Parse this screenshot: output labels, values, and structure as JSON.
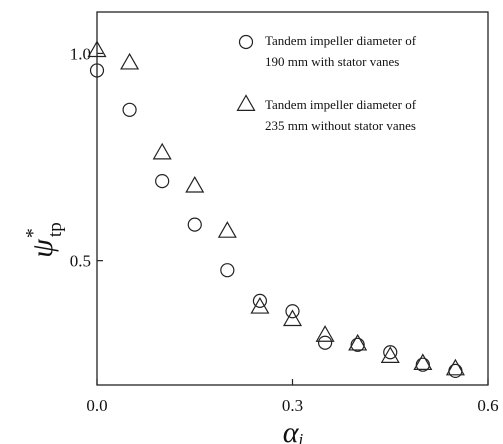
{
  "chart_data": {
    "type": "scatter",
    "xlim": [
      0.0,
      0.6
    ],
    "ylim": [
      0.2,
      1.1
    ],
    "x_ticks": [
      {
        "value": 0.0,
        "label": "0.0"
      },
      {
        "value": 0.3,
        "label": "0.3"
      },
      {
        "value": 0.6,
        "label": "0.6"
      }
    ],
    "y_ticks": [
      {
        "value": 0.5,
        "label": "0.5"
      },
      {
        "value": 1.0,
        "label": "1.0"
      }
    ],
    "xlabel": {
      "main": "α",
      "sub": "i"
    },
    "ylabel": {
      "main": "ψ",
      "sup": "*",
      "sub": "tp"
    },
    "grid": false,
    "legend_position": "top-right",
    "series": [
      {
        "name_lines": [
          "Tandem impeller diameter of",
          "190 mm with stator vanes"
        ],
        "marker": "circle",
        "points": [
          [
            0.0,
            0.959
          ],
          [
            0.05,
            0.864
          ],
          [
            0.1,
            0.692
          ],
          [
            0.15,
            0.587
          ],
          [
            0.2,
            0.477
          ],
          [
            0.25,
            0.403
          ],
          [
            0.3,
            0.378
          ],
          [
            0.35,
            0.302
          ],
          [
            0.4,
            0.297
          ],
          [
            0.45,
            0.279
          ],
          [
            0.5,
            0.249
          ],
          [
            0.55,
            0.234
          ]
        ]
      },
      {
        "name_lines": [
          "Tandem impeller diameter of",
          "235 mm without stator vanes"
        ],
        "marker": "triangle",
        "points": [
          [
            0.0,
            1.008
          ],
          [
            0.05,
            0.978
          ],
          [
            0.1,
            0.761
          ],
          [
            0.15,
            0.681
          ],
          [
            0.2,
            0.572
          ],
          [
            0.25,
            0.389
          ],
          [
            0.3,
            0.359
          ],
          [
            0.35,
            0.321
          ],
          [
            0.4,
            0.3
          ],
          [
            0.45,
            0.27
          ],
          [
            0.5,
            0.253
          ],
          [
            0.55,
            0.24
          ]
        ]
      }
    ]
  }
}
